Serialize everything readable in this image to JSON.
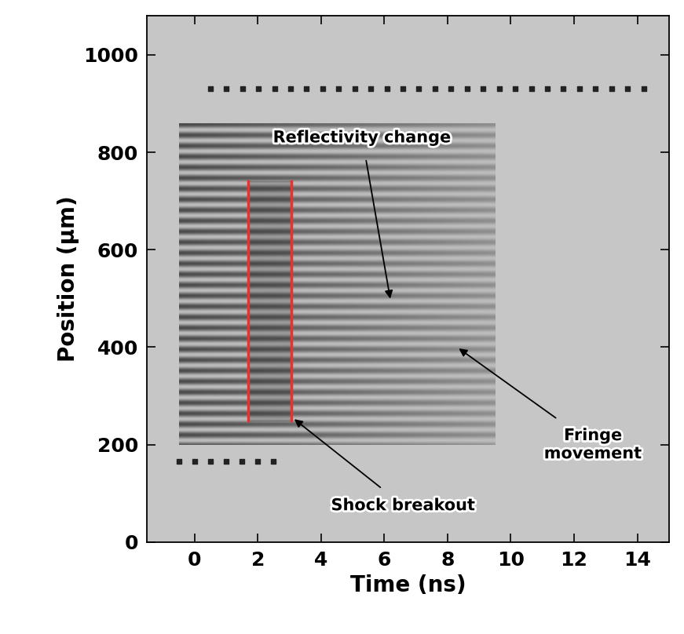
{
  "chart_data": {
    "type": "image",
    "xlabel": "Time (ns)",
    "ylabel": "Position (μm)",
    "xlim": [
      -1.5,
      15
    ],
    "ylim": [
      0,
      1080
    ],
    "xticks": [
      0,
      2,
      4,
      6,
      8,
      10,
      12,
      14
    ],
    "yticks": [
      0,
      200,
      400,
      600,
      800,
      1000
    ],
    "fringe_region": {
      "x": [
        -0.5,
        9.5
      ],
      "y": [
        200,
        860
      ]
    },
    "timing_marks": [
      {
        "y": 930,
        "x": [
          0.5,
          14.2
        ]
      },
      {
        "y": 165,
        "x": [
          -0.5,
          2.5
        ]
      }
    ],
    "lines": {
      "color": "#e8322e",
      "x": [
        1.7,
        3.05
      ],
      "y": [
        250,
        740
      ]
    },
    "annotations": [
      {
        "text": "Reflectivity change",
        "xy": [
          6.2,
          495
        ],
        "xytext": [
          5.3,
          830
        ]
      },
      {
        "text": "Fringe\nmovement",
        "xy": [
          8.3,
          400
        ],
        "xytext": [
          12.6,
          200
        ]
      },
      {
        "text": "Shock breakout",
        "xy": [
          3.1,
          255
        ],
        "xytext": [
          6.6,
          75
        ]
      }
    ]
  }
}
